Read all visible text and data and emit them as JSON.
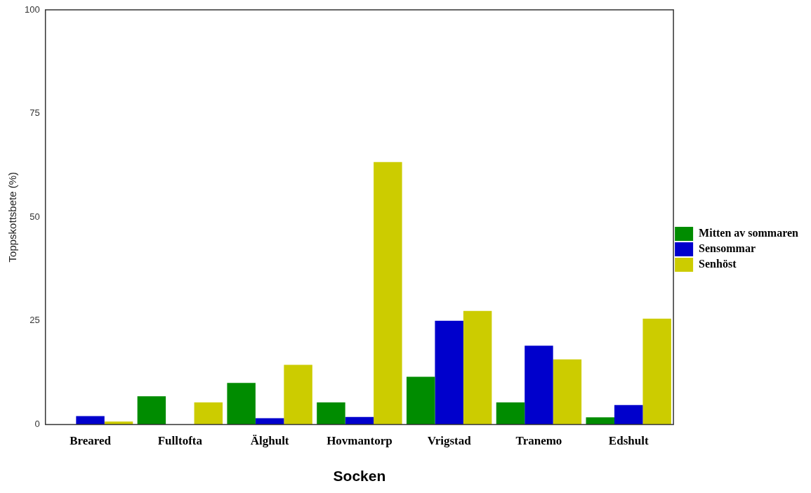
{
  "chart_data": {
    "type": "bar",
    "xlabel": "Socken",
    "ylabel": "Toppskottsbete (%)",
    "categories": [
      "Breared",
      "Fulltofta",
      "Älghult",
      "Hovmantorp",
      "Vrigstad",
      "Tranemo",
      "Edshult"
    ],
    "series": [
      {
        "name": "Mitten av sommaren",
        "color": "#008c00",
        "values": [
          0,
          6.8,
          10.0,
          5.3,
          11.5,
          5.3,
          1.7
        ]
      },
      {
        "name": "Sensommar",
        "color": "#0000cc",
        "values": [
          2.0,
          0,
          1.5,
          1.8,
          25.0,
          19.0,
          4.7
        ]
      },
      {
        "name": "Senhöst",
        "color": "#cccc00",
        "values": [
          0.7,
          5.3,
          14.4,
          63.3,
          27.4,
          15.7,
          25.5
        ]
      }
    ],
    "ylim": [
      0,
      100
    ],
    "yticks": [
      0,
      25,
      50,
      75,
      100
    ],
    "grid": false,
    "legend": "right"
  }
}
